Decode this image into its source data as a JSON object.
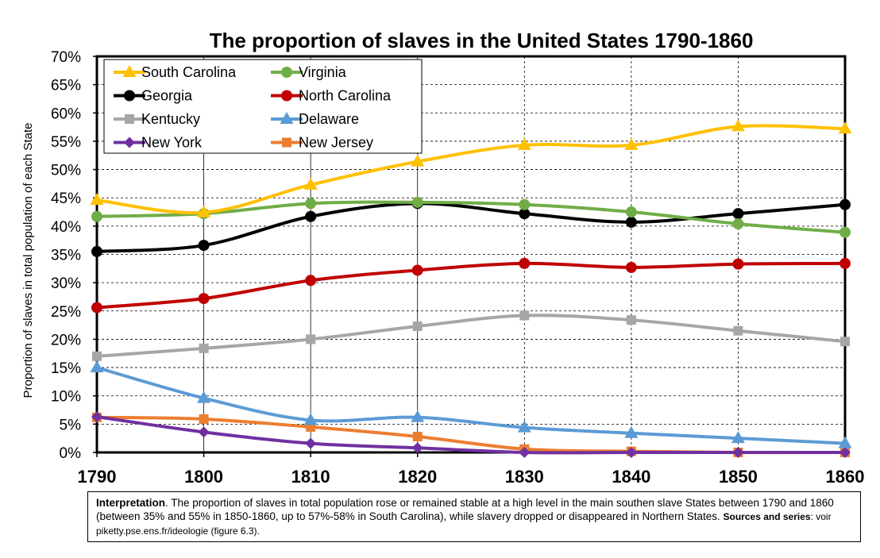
{
  "chart_data": {
    "type": "line",
    "title": "The proportion of slaves in the United States 1790-1860",
    "xlabel": "",
    "ylabel": "Proportion of slaves in total population of each State",
    "x": [
      1790,
      1800,
      1810,
      1820,
      1830,
      1840,
      1850,
      1860
    ],
    "ylim": [
      0,
      70
    ],
    "yticks": [
      0,
      5,
      10,
      15,
      20,
      25,
      30,
      35,
      40,
      45,
      50,
      55,
      60,
      65,
      70
    ],
    "ytick_suffix": "%",
    "grid": true,
    "legend_position": "top-left",
    "series": [
      {
        "name": "South Carolina",
        "color": "#FFC000",
        "marker": "triangle",
        "values": [
          44.6,
          42.4,
          47.3,
          51.4,
          54.3,
          54.3,
          57.6,
          57.2
        ]
      },
      {
        "name": "Virginia",
        "color": "#70AD47",
        "marker": "circle",
        "values": [
          41.7,
          42.2,
          44.0,
          44.2,
          43.8,
          42.5,
          40.4,
          38.9
        ]
      },
      {
        "name": "Georgia",
        "color": "#000000",
        "marker": "circle",
        "values": [
          35.5,
          36.6,
          41.7,
          44.0,
          42.2,
          40.7,
          42.2,
          43.8
        ]
      },
      {
        "name": "North Carolina",
        "color": "#C00000",
        "marker": "circle",
        "values": [
          25.6,
          27.2,
          30.4,
          32.2,
          33.4,
          32.7,
          33.3,
          33.4
        ]
      },
      {
        "name": "Kentucky",
        "color": "#A6A6A6",
        "marker": "square",
        "values": [
          17.0,
          18.4,
          20.0,
          22.3,
          24.2,
          23.4,
          21.5,
          19.6
        ]
      },
      {
        "name": "Delaware",
        "color": "#5B9BD5",
        "marker": "triangle",
        "values": [
          15.0,
          9.6,
          5.7,
          6.2,
          4.4,
          3.4,
          2.5,
          1.6
        ]
      },
      {
        "name": "New York",
        "color": "#7030A0",
        "marker": "diamond",
        "values": [
          6.3,
          3.6,
          1.6,
          0.8,
          0.0,
          0.0,
          0.0,
          0.0
        ]
      },
      {
        "name": "New Jersey",
        "color": "#ED7D31",
        "marker": "square",
        "values": [
          6.2,
          5.9,
          4.5,
          2.8,
          0.6,
          0.2,
          0.0,
          0.0
        ]
      }
    ]
  },
  "note": {
    "label": "Interpretation",
    "text": ". The proportion of slaves in total population rose or remained stable at a high level in the main southen slave States between 1790 and 1860 (between 35% and 55% in 1850-1860, up to 57%-58% in South Carolina), while slavery dropped or disappeared in Northern States.",
    "sources_label": "Sources and series",
    "sources_text": ": voir piketty.pse.ens.fr/ideologie (figure 6.3)."
  }
}
